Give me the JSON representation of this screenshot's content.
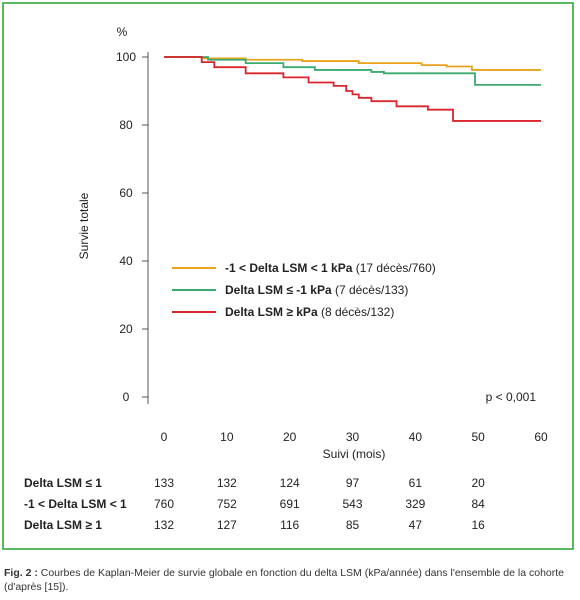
{
  "chart_data": {
    "type": "line",
    "ylabel": "Survie totale",
    "yunit": "%",
    "xlabel": "Suivi (mois)",
    "xlim": [
      0,
      60
    ],
    "ylim": [
      0,
      100
    ],
    "xticks": [
      0,
      10,
      20,
      30,
      40,
      50,
      60
    ],
    "yticks": [
      0,
      20,
      40,
      60,
      80,
      100
    ],
    "grid": false,
    "legend_position": "center-left",
    "series": [
      {
        "name": "-1 < Delta LSM < 1 kPa (17 décès/760)",
        "name_bold": "-1 < Delta LSM < 1 kPa",
        "name_rest": " (17 décès/760)",
        "color": "#e8a21c",
        "x": [
          0,
          6,
          13,
          22,
          31,
          41,
          45,
          49,
          60
        ],
        "y": [
          100,
          99.6,
          99.2,
          98.8,
          98.2,
          97.6,
          97.2,
          96.2,
          96.2
        ]
      },
      {
        "name": "Delta LSM ≤ -1 kPa (7 décès/133)",
        "name_bold": "Delta LSM ≤ -1 kPa",
        "name_rest": " (7 décès/133)",
        "color": "#3aaa6e",
        "x": [
          0,
          7,
          13,
          19,
          24,
          33,
          35,
          48,
          49.5,
          60
        ],
        "y": [
          100,
          99.2,
          98.2,
          97.0,
          96.2,
          95.6,
          95.2,
          95.2,
          91.8,
          91.8
        ]
      },
      {
        "name": "Delta LSM ≥ kPa (8 décès/132)",
        "name_bold": "Delta LSM ≥ kPa",
        "name_rest": " (8 décès/132)",
        "color": "#d9262e",
        "x": [
          0,
          6,
          8,
          13,
          19,
          23,
          27,
          29,
          30,
          31,
          33,
          37,
          42,
          46,
          60
        ],
        "y": [
          100,
          98.5,
          97.0,
          95.2,
          94.0,
          92.5,
          91.5,
          90.0,
          89.0,
          88.0,
          87.0,
          85.5,
          84.5,
          81.2,
          81.2
        ]
      }
    ],
    "annotation": "p < 0,001"
  },
  "risk_table": {
    "times": [
      0,
      10,
      20,
      30,
      40,
      50
    ],
    "rows": [
      {
        "label": "Delta LSM ≤ 1",
        "values": [
          "133",
          "132",
          "124",
          "97",
          "61",
          "20"
        ]
      },
      {
        "label": "-1 < Delta LSM < 1",
        "values": [
          "760",
          "752",
          "691",
          "543",
          "329",
          "84"
        ]
      },
      {
        "label": "Delta LSM ≥ 1",
        "values": [
          "132",
          "127",
          "116",
          "85",
          "47",
          "16"
        ]
      }
    ]
  },
  "caption": {
    "fig_label": "Fig. 2 :",
    "text": " Courbes de Kaplan-Meier de survie globale en fonction du delta LSM (kPa/année) dans l'ensemble de la cohorte (d'après [15])."
  }
}
